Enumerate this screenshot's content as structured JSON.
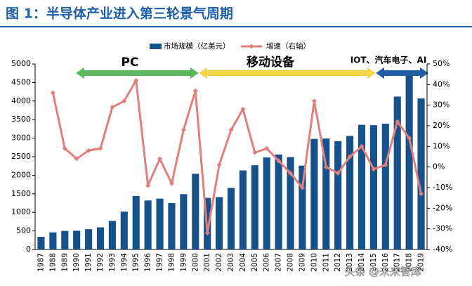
{
  "chart_data": {
    "type": "bar-line",
    "title": "图 1：半导体产业进入第三轮景气周期",
    "categories": [
      "1987",
      "1988",
      "1989",
      "1990",
      "1991",
      "1992",
      "1993",
      "1994",
      "1995",
      "1996",
      "1997",
      "1998",
      "1999",
      "2000",
      "2001",
      "2002",
      "2003",
      "2004",
      "2005",
      "2006",
      "2007",
      "2008",
      "2009",
      "2010",
      "2011",
      "2012",
      "2013",
      "2014",
      "2015",
      "2016",
      "2017",
      "2018",
      "2019"
    ],
    "series": [
      {
        "name": "市场规模（亿美元）",
        "type": "bar",
        "color": "#17518c",
        "values": [
          340,
          460,
          500,
          505,
          546,
          596,
          770,
          1020,
          1440,
          1320,
          1370,
          1250,
          1490,
          2040,
          1390,
          1410,
          1660,
          2130,
          2270,
          2480,
          2560,
          2490,
          2260,
          2980,
          2990,
          2920,
          3060,
          3360,
          3350,
          3390,
          4120,
          4690,
          4070
        ]
      },
      {
        "name": "增速（右轴）",
        "type": "line",
        "axis": "y2",
        "color": "#e07f7c",
        "values": [
          null,
          36,
          9,
          4,
          8,
          9,
          29,
          32,
          42,
          -9,
          4,
          -8,
          18,
          37,
          -32,
          1,
          18,
          28,
          7,
          9,
          3,
          -3,
          -10,
          32,
          0,
          -3,
          5,
          10,
          -1,
          1,
          22,
          14,
          -13
        ]
      }
    ],
    "ylim": [
      0,
      5000
    ],
    "yticks": [
      0,
      500,
      1000,
      1500,
      2000,
      2500,
      3000,
      3500,
      4000,
      4500,
      5000
    ],
    "y2lim": [
      -40,
      50
    ],
    "y2ticks": [
      {
        "value": -40,
        "label": "-40%"
      },
      {
        "value": -30,
        "label": "-30%"
      },
      {
        "value": -20,
        "label": "-20%"
      },
      {
        "value": -10,
        "label": "-10%"
      },
      {
        "value": 0,
        "label": "0%"
      },
      {
        "value": 10,
        "label": "10%"
      },
      {
        "value": 20,
        "label": "20%"
      },
      {
        "value": 30,
        "label": "30%"
      },
      {
        "value": 40,
        "label": "40%"
      },
      {
        "value": 50,
        "label": "50%"
      }
    ],
    "annotations": [
      "PC",
      "移动设备",
      "IOT、汽车电子、AI"
    ],
    "watermark": "头条 @未来智库",
    "grid": false
  }
}
